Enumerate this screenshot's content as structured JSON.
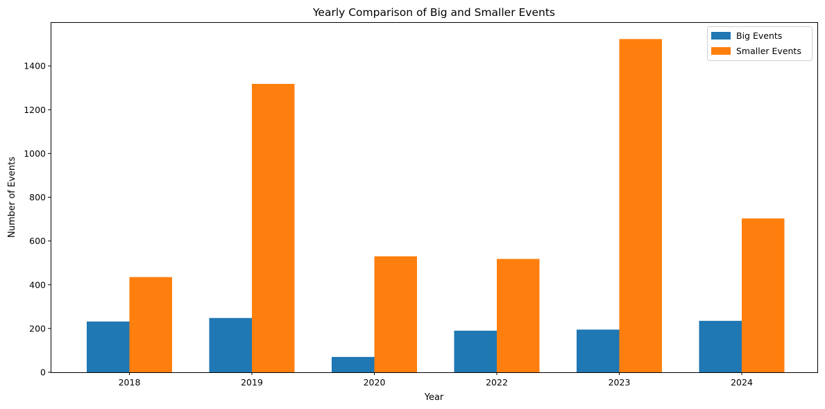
{
  "chart_data": {
    "type": "bar",
    "title": "Yearly Comparison of Big and Smaller Events",
    "xlabel": "Year",
    "ylabel": "Number of Events",
    "categories": [
      "2018",
      "2019",
      "2020",
      "2022",
      "2023",
      "2024"
    ],
    "series": [
      {
        "name": "Big Events",
        "color": "#1f77b4",
        "values": [
          232,
          248,
          70,
          190,
          195,
          235
        ]
      },
      {
        "name": "Smaller Events",
        "color": "#ff7f0e",
        "values": [
          435,
          1318,
          530,
          518,
          1523,
          703
        ]
      }
    ],
    "ylim": [
      0,
      1600
    ],
    "yticks": [
      0,
      200,
      400,
      600,
      800,
      1000,
      1200,
      1400
    ],
    "grid": false,
    "legend_position": "top-right"
  }
}
